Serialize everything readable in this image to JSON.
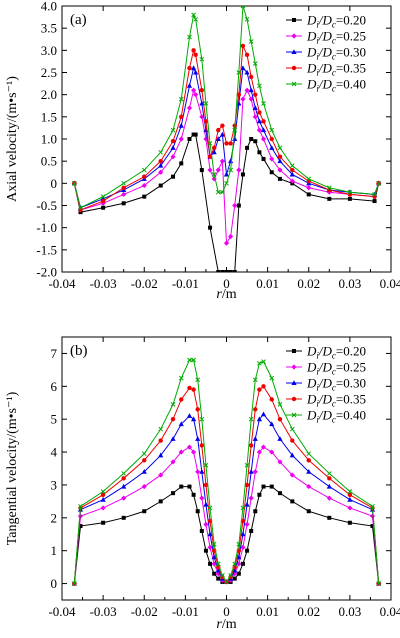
{
  "chart_data": [
    {
      "type": "line",
      "panel_label": "(a)",
      "xlabel_var": "r",
      "xlabel_unit": "/m",
      "ylabel": "Axial velocity/(m•s⁻¹)",
      "xlim": [
        -0.04,
        0.04
      ],
      "ylim": [
        -2.0,
        4.0
      ],
      "xticks": [
        -0.04,
        -0.03,
        -0.02,
        -0.01,
        0,
        0.01,
        0.02,
        0.03,
        0.04
      ],
      "xtick_labels": [
        "-0.04",
        "-0.03",
        "-0.02",
        "-0.01",
        "0",
        "0.01",
        "0.02",
        "0.03",
        "0.04"
      ],
      "yticks": [
        -2.0,
        -1.5,
        -1.0,
        -0.5,
        0,
        0.5,
        1.0,
        1.5,
        2.0,
        2.5,
        3.0,
        3.5,
        4.0
      ],
      "ytick_labels": [
        "-2.0",
        "-1.5",
        "-1.0",
        "-0.5",
        "0",
        "0.5",
        "1.0",
        "1.5",
        "2.0",
        "2.5",
        "3.0",
        "3.5",
        "4.0"
      ],
      "legend_position": "top-right",
      "series": [
        {
          "name": "Di/Dc=0.20",
          "color": "#000000",
          "marker": "square",
          "x": [
            -0.037,
            -0.0355,
            -0.03,
            -0.025,
            -0.02,
            -0.016,
            -0.013,
            -0.011,
            -0.009,
            -0.008,
            -0.0075,
            -0.006,
            -0.004,
            -0.002,
            -0.001,
            0,
            0.001,
            0.002,
            0.003,
            0.004,
            0.005,
            0.006,
            0.007,
            0.008,
            0.009,
            0.011,
            0.013,
            0.016,
            0.02,
            0.025,
            0.03,
            0.036,
            0.037
          ],
          "y": [
            0,
            -0.65,
            -0.55,
            -0.45,
            -0.3,
            -0.05,
            0.15,
            0.45,
            1.0,
            1.1,
            1.1,
            0.3,
            -1.0,
            -2.0,
            -2.0,
            -2.0,
            -2.0,
            -2.0,
            -0.5,
            0.2,
            0.8,
            1.0,
            0.95,
            0.7,
            0.55,
            0.25,
            0.1,
            0.0,
            -0.25,
            -0.35,
            -0.35,
            -0.4,
            0
          ]
        },
        {
          "name": "Di/Dc=0.25",
          "color": "#ee00ee",
          "marker": "diamond",
          "x": [
            -0.037,
            -0.0355,
            -0.03,
            -0.025,
            -0.02,
            -0.016,
            -0.013,
            -0.011,
            -0.009,
            -0.008,
            -0.0075,
            -0.006,
            -0.005,
            -0.004,
            -0.003,
            -0.002,
            -0.001,
            0,
            0.001,
            0.002,
            0.003,
            0.004,
            0.005,
            0.006,
            0.007,
            0.008,
            0.009,
            0.011,
            0.013,
            0.016,
            0.02,
            0.025,
            0.03,
            0.036,
            0.037
          ],
          "y": [
            0,
            -0.6,
            -0.45,
            -0.25,
            -0.05,
            0.25,
            0.6,
            1.0,
            1.7,
            2.1,
            2.0,
            1.5,
            1.0,
            0.3,
            0.1,
            0.3,
            0.5,
            -1.35,
            -1.2,
            -0.5,
            0.3,
            1.9,
            2.1,
            1.9,
            1.5,
            1.2,
            1.0,
            0.55,
            0.3,
            0.05,
            -0.1,
            -0.2,
            -0.25,
            -0.3,
            0
          ]
        },
        {
          "name": "Di/Dc=0.30",
          "color": "#0000ee",
          "marker": "triangle",
          "x": [
            -0.037,
            -0.0355,
            -0.03,
            -0.025,
            -0.02,
            -0.016,
            -0.013,
            -0.011,
            -0.009,
            -0.008,
            -0.0075,
            -0.006,
            -0.005,
            -0.004,
            -0.003,
            -0.002,
            -0.001,
            0,
            0.001,
            0.002,
            0.003,
            0.004,
            0.005,
            0.006,
            0.007,
            0.008,
            0.009,
            0.011,
            0.013,
            0.016,
            0.02,
            0.025,
            0.03,
            0.036,
            0.037
          ],
          "y": [
            0,
            -0.55,
            -0.35,
            -0.15,
            0.1,
            0.4,
            0.8,
            1.3,
            2.2,
            2.6,
            2.5,
            1.8,
            1.2,
            0.6,
            0.7,
            1.0,
            1.1,
            0.2,
            0.5,
            1.0,
            1.8,
            2.6,
            2.5,
            2.1,
            1.7,
            1.4,
            1.2,
            0.8,
            0.5,
            0.2,
            0.0,
            -0.15,
            -0.2,
            -0.25,
            0
          ]
        },
        {
          "name": "Di/Dc=0.35",
          "color": "#ee0000",
          "marker": "circle",
          "x": [
            -0.037,
            -0.0355,
            -0.03,
            -0.025,
            -0.02,
            -0.016,
            -0.013,
            -0.011,
            -0.009,
            -0.008,
            -0.0075,
            -0.006,
            -0.005,
            -0.004,
            -0.003,
            -0.002,
            -0.001,
            0,
            0.001,
            0.002,
            0.003,
            0.004,
            0.005,
            0.006,
            0.007,
            0.008,
            0.009,
            0.011,
            0.013,
            0.016,
            0.02,
            0.025,
            0.03,
            0.036,
            0.037
          ],
          "y": [
            0,
            -0.6,
            -0.4,
            -0.1,
            0.15,
            0.5,
            0.95,
            1.5,
            2.6,
            3.0,
            2.9,
            2.1,
            1.4,
            0.6,
            0.8,
            1.2,
            1.3,
            0.9,
            0.9,
            1.3,
            2.0,
            3.1,
            2.9,
            2.4,
            2.0,
            1.6,
            1.4,
            1.0,
            0.6,
            0.3,
            0.05,
            -0.15,
            -0.25,
            -0.3,
            0
          ]
        },
        {
          "name": "Di/Dc=0.40",
          "color": "#00aa00",
          "marker": "cross",
          "x": [
            -0.037,
            -0.0355,
            -0.03,
            -0.025,
            -0.02,
            -0.016,
            -0.013,
            -0.011,
            -0.009,
            -0.008,
            -0.0075,
            -0.006,
            -0.005,
            -0.004,
            -0.003,
            -0.002,
            -0.001,
            0,
            0.001,
            0.002,
            0.003,
            0.004,
            0.005,
            0.006,
            0.007,
            0.008,
            0.009,
            0.011,
            0.013,
            0.016,
            0.02,
            0.025,
            0.03,
            0.036,
            0.037
          ],
          "y": [
            0,
            -0.55,
            -0.3,
            0.0,
            0.3,
            0.7,
            1.2,
            1.9,
            3.3,
            3.8,
            3.7,
            2.8,
            1.8,
            0.9,
            0.2,
            -0.2,
            -0.2,
            0.0,
            0.3,
            1.2,
            2.5,
            4.0,
            3.7,
            3.2,
            2.7,
            2.2,
            1.8,
            1.2,
            0.8,
            0.4,
            0.1,
            -0.1,
            -0.2,
            -0.25,
            0
          ]
        }
      ]
    },
    {
      "type": "line",
      "panel_label": "(b)",
      "xlabel_var": "r",
      "xlabel_unit": "/m",
      "ylabel": "Tangential velocity/(m•s⁻¹)",
      "xlim": [
        -0.04,
        0.04
      ],
      "ylim": [
        -0.5,
        7.5
      ],
      "xticks": [
        -0.04,
        -0.03,
        -0.02,
        -0.01,
        0,
        0.01,
        0.02,
        0.03,
        0.04
      ],
      "xtick_labels": [
        "-0.04",
        "-0.03",
        "-0.02",
        "-0.01",
        "0",
        "0.01",
        "0.02",
        "0.03",
        "0.04"
      ],
      "yticks": [
        0,
        1,
        2,
        3,
        4,
        5,
        6,
        7
      ],
      "ytick_labels": [
        "0",
        "1",
        "2",
        "3",
        "4",
        "5",
        "6",
        "7"
      ],
      "legend_position": "top-right",
      "series": [
        {
          "name": "Di/Dc=0.20",
          "color": "#000000",
          "marker": "square",
          "x": [
            -0.037,
            -0.0355,
            -0.03,
            -0.025,
            -0.02,
            -0.016,
            -0.013,
            -0.011,
            -0.009,
            -0.008,
            -0.007,
            -0.006,
            -0.005,
            -0.004,
            -0.003,
            -0.002,
            -0.001,
            0,
            0.001,
            0.002,
            0.003,
            0.004,
            0.005,
            0.006,
            0.007,
            0.008,
            0.009,
            0.011,
            0.013,
            0.016,
            0.02,
            0.025,
            0.03,
            0.0355,
            0.037
          ],
          "y": [
            0,
            1.75,
            1.85,
            2.0,
            2.2,
            2.5,
            2.75,
            2.95,
            2.95,
            2.7,
            2.2,
            1.6,
            1.0,
            0.6,
            0.3,
            0.15,
            0.05,
            0.05,
            0.05,
            0.15,
            0.3,
            0.6,
            1.0,
            1.6,
            2.2,
            2.7,
            2.95,
            2.95,
            2.75,
            2.5,
            2.2,
            2.0,
            1.85,
            1.75,
            0
          ]
        },
        {
          "name": "Di/Dc=0.25",
          "color": "#ee00ee",
          "marker": "diamond",
          "x": [
            -0.037,
            -0.0355,
            -0.03,
            -0.025,
            -0.02,
            -0.016,
            -0.013,
            -0.011,
            -0.009,
            -0.008,
            -0.007,
            -0.006,
            -0.005,
            -0.004,
            -0.003,
            -0.002,
            -0.001,
            0,
            0.001,
            0.002,
            0.003,
            0.004,
            0.005,
            0.006,
            0.007,
            0.008,
            0.009,
            0.011,
            0.013,
            0.016,
            0.02,
            0.025,
            0.03,
            0.0355,
            0.037
          ],
          "y": [
            0,
            2.05,
            2.3,
            2.6,
            2.95,
            3.3,
            3.7,
            4.0,
            4.15,
            4.0,
            3.4,
            2.6,
            1.8,
            1.1,
            0.6,
            0.3,
            0.1,
            0.05,
            0.1,
            0.3,
            0.6,
            1.1,
            1.8,
            2.6,
            3.4,
            4.0,
            4.15,
            4.0,
            3.7,
            3.3,
            2.95,
            2.6,
            2.3,
            2.05,
            0
          ]
        },
        {
          "name": "Di/Dc=0.30",
          "color": "#0000ee",
          "marker": "triangle",
          "x": [
            -0.037,
            -0.0355,
            -0.03,
            -0.025,
            -0.02,
            -0.016,
            -0.013,
            -0.011,
            -0.009,
            -0.008,
            -0.007,
            -0.006,
            -0.005,
            -0.004,
            -0.003,
            -0.002,
            -0.001,
            0,
            0.001,
            0.002,
            0.003,
            0.004,
            0.005,
            0.006,
            0.007,
            0.008,
            0.009,
            0.011,
            0.013,
            0.016,
            0.02,
            0.025,
            0.03,
            0.0355,
            0.037
          ],
          "y": [
            0,
            2.25,
            2.55,
            2.95,
            3.4,
            3.9,
            4.4,
            4.85,
            5.1,
            5.0,
            4.4,
            3.4,
            2.4,
            1.5,
            0.8,
            0.4,
            0.15,
            0.05,
            0.15,
            0.4,
            0.8,
            1.5,
            2.4,
            3.4,
            4.4,
            5.0,
            5.15,
            4.85,
            4.4,
            3.9,
            3.4,
            2.95,
            2.55,
            2.25,
            0
          ]
        },
        {
          "name": "Di/Dc=0.35",
          "color": "#ee0000",
          "marker": "circle",
          "x": [
            -0.037,
            -0.0355,
            -0.03,
            -0.025,
            -0.02,
            -0.016,
            -0.013,
            -0.011,
            -0.009,
            -0.008,
            -0.007,
            -0.006,
            -0.005,
            -0.004,
            -0.003,
            -0.002,
            -0.001,
            0,
            0.001,
            0.002,
            0.003,
            0.004,
            0.005,
            0.006,
            0.007,
            0.008,
            0.009,
            0.011,
            0.013,
            0.016,
            0.02,
            0.025,
            0.03,
            0.0355,
            0.037
          ],
          "y": [
            0,
            2.3,
            2.7,
            3.2,
            3.75,
            4.35,
            5.0,
            5.6,
            5.95,
            5.9,
            5.3,
            4.2,
            3.0,
            1.9,
            1.0,
            0.5,
            0.2,
            0.05,
            0.2,
            0.5,
            1.0,
            1.9,
            3.0,
            4.2,
            5.3,
            5.9,
            6.0,
            5.6,
            5.0,
            4.35,
            3.75,
            3.2,
            2.7,
            2.3,
            0
          ]
        },
        {
          "name": "Di/Dc=0.40",
          "color": "#00aa00",
          "marker": "cross",
          "x": [
            -0.037,
            -0.0355,
            -0.03,
            -0.025,
            -0.02,
            -0.016,
            -0.013,
            -0.011,
            -0.009,
            -0.008,
            -0.007,
            -0.006,
            -0.005,
            -0.004,
            -0.003,
            -0.002,
            -0.001,
            0,
            0.001,
            0.002,
            0.003,
            0.004,
            0.005,
            0.006,
            0.007,
            0.008,
            0.009,
            0.011,
            0.013,
            0.016,
            0.02,
            0.025,
            0.03,
            0.0355,
            0.037
          ],
          "y": [
            0,
            2.35,
            2.8,
            3.35,
            3.95,
            4.7,
            5.45,
            6.25,
            6.8,
            6.8,
            6.2,
            5.0,
            3.6,
            2.3,
            1.2,
            0.6,
            0.25,
            0.05,
            0.25,
            0.6,
            1.2,
            2.3,
            3.6,
            5.0,
            6.2,
            6.7,
            6.75,
            6.25,
            5.45,
            4.7,
            3.95,
            3.35,
            2.8,
            2.35,
            0
          ]
        }
      ]
    }
  ]
}
